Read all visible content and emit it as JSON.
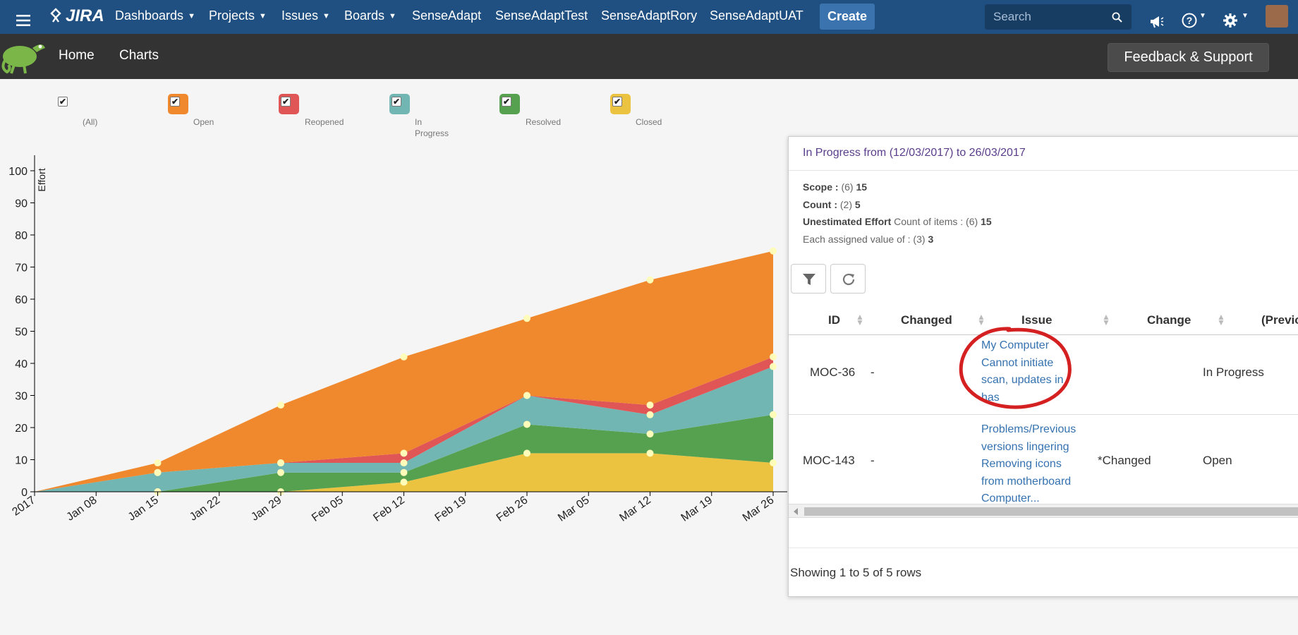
{
  "topbar": {
    "logo": "JIRA",
    "nav": [
      {
        "label": "Dashboards",
        "dropdown": true
      },
      {
        "label": "Projects",
        "dropdown": true
      },
      {
        "label": "Issues",
        "dropdown": true
      },
      {
        "label": "Boards",
        "dropdown": true
      },
      {
        "label": "SenseAdapt",
        "dropdown": false
      },
      {
        "label": "SenseAdaptTest",
        "dropdown": false
      },
      {
        "label": "SenseAdaptRory",
        "dropdown": false
      },
      {
        "label": "SenseAdaptUAT",
        "dropdown": false
      }
    ],
    "create_label": "Create",
    "search_placeholder": "Search",
    "icons": [
      "menu-icon",
      "announcement-icon",
      "help-icon",
      "gear-icon",
      "user-avatar"
    ]
  },
  "subbar": {
    "nav": [
      "Home",
      "Charts"
    ],
    "feedback_label": "Feedback & Support"
  },
  "legend": [
    {
      "label": "(All)",
      "color": "",
      "checked": true
    },
    {
      "label": "Open",
      "color": "#f0892d",
      "checked": true
    },
    {
      "label": "Reopened",
      "color": "#e05555",
      "checked": true
    },
    {
      "label": "In Progress",
      "color": "#72b6b3",
      "checked": true
    },
    {
      "label": "Resolved",
      "color": "#55a14f",
      "checked": true
    },
    {
      "label": "Closed",
      "color": "#ebc340",
      "checked": true
    }
  ],
  "chart_data": {
    "type": "area",
    "stacked": true,
    "ylabel": "Effort",
    "ylim": [
      0,
      100
    ],
    "yticks": [
      0,
      10,
      20,
      30,
      40,
      50,
      60,
      70,
      80,
      90,
      100
    ],
    "xticks": [
      "2017",
      "Jan 08",
      "Jan 15",
      "Jan 22",
      "Jan 29",
      "Feb 05",
      "Feb 12",
      "Feb 19",
      "Feb 26",
      "Mar 05",
      "Mar 12",
      "Mar 19",
      "Mar 26"
    ],
    "x": [
      "2017-01-01",
      "2017-01-15",
      "2017-01-29",
      "2017-02-12",
      "2017-02-26",
      "2017-03-12",
      "2017-03-26"
    ],
    "series": [
      {
        "name": "Closed",
        "color": "#ebc340",
        "values": [
          0,
          0,
          0,
          3,
          12,
          12,
          9
        ]
      },
      {
        "name": "Resolved",
        "color": "#55a14f",
        "values": [
          0,
          0,
          6,
          3,
          9,
          6,
          15
        ]
      },
      {
        "name": "In Progress",
        "color": "#72b6b3",
        "values": [
          0,
          6,
          3,
          3,
          9,
          6,
          15
        ]
      },
      {
        "name": "Reopened",
        "color": "#e05555",
        "values": [
          0,
          0,
          0,
          3,
          0,
          3,
          3
        ]
      },
      {
        "name": "Open",
        "color": "#f0892d",
        "values": [
          0,
          3,
          18,
          30,
          24,
          39,
          33
        ]
      }
    ]
  },
  "panel": {
    "title": "In Progress from (12/03/2017) to 26/03/2017",
    "stats": {
      "scope_label": "Scope :",
      "scope_value": "(6)",
      "scope_bold": "15",
      "count_label": "Count :",
      "count_value": "(2)",
      "count_bold": "5",
      "unest_label": "Unestimated Effort",
      "unest_value": "Count of items : (6)",
      "unest_bold": "15",
      "each_value": "Each assigned value of : (3)",
      "each_bold": "3"
    },
    "toolbar": [
      "filter-icon",
      "refresh-icon"
    ],
    "columns": [
      "ID",
      "Changed",
      "Issue",
      "Change",
      "(Previo"
    ],
    "rows": [
      {
        "id": "MOC-36",
        "changed": "-",
        "issue": [
          "My Computer",
          "Cannot initiate",
          "scan, updates in",
          "has"
        ],
        "change": "",
        "previous": "In Progress",
        "annotated": true
      },
      {
        "id": "MOC-143",
        "changed": "-",
        "issue": [
          "Problems/Previous",
          "versions lingering",
          "Removing icons",
          "from motherboard",
          "Computer..."
        ],
        "change": "*Changed",
        "previous": "Open",
        "annotated": false
      }
    ],
    "footer": "Showing 1 to 5 of 5 rows"
  }
}
